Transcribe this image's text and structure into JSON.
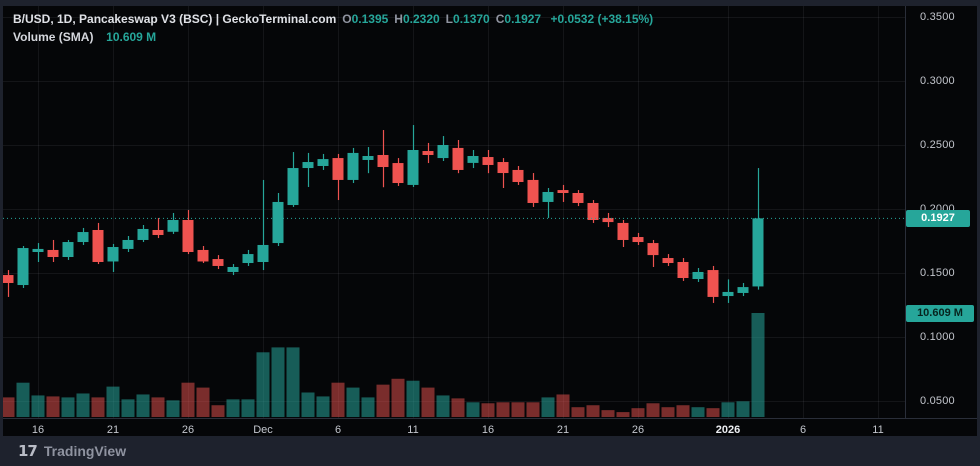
{
  "header": {
    "symbol_line": "B/USD, 1D, Pancakeswap V3 (BSC) | GeckoTerminal.com",
    "ohlc": [
      {
        "label": "O",
        "value": "0.1395"
      },
      {
        "label": "H",
        "value": "0.2320"
      },
      {
        "label": "L",
        "value": "0.1370"
      },
      {
        "label": "C",
        "value": "0.1927"
      }
    ],
    "change": "+0.0532 (+38.15%)",
    "volume_label": "Volume (SMA)",
    "volume_value": "10.609 M"
  },
  "price_axis": {
    "ticks": [
      "0.3500",
      "0.3000",
      "0.2500",
      "0.2000",
      "0.1500",
      "0.1000",
      "0.0500"
    ],
    "last_price_badge": "0.1927",
    "last_volume_badge": "10.609 M"
  },
  "time_axis": {
    "ticks": [
      {
        "label": "16",
        "i": 2,
        "major": false
      },
      {
        "label": "21",
        "i": 7,
        "major": false
      },
      {
        "label": "26",
        "i": 12,
        "major": false
      },
      {
        "label": "Dec",
        "i": 17,
        "major": false
      },
      {
        "label": "6",
        "i": 22,
        "major": false
      },
      {
        "label": "11",
        "i": 27,
        "major": false
      },
      {
        "label": "16",
        "i": 32,
        "major": false
      },
      {
        "label": "21",
        "i": 37,
        "major": false
      },
      {
        "label": "26",
        "i": 42,
        "major": false
      },
      {
        "label": "2026",
        "i": 48,
        "major": true
      },
      {
        "label": "6",
        "i": 53,
        "major": false
      },
      {
        "label": "11",
        "i": 58,
        "major": false
      }
    ]
  },
  "footer": {
    "brand": "TradingView",
    "glyph": "17"
  },
  "colors": {
    "up": "#26a69a",
    "down": "#ef5350",
    "vol_up": "rgba(38,166,154,0.55)",
    "vol_down": "rgba(239,83,80,0.5)",
    "grid": "rgba(240,243,250,0.065)",
    "axis_line": "#2a2e39",
    "badge_bg": "#26a69a",
    "price_line": "#26a69a"
  },
  "chart_data": {
    "type": "candlestick",
    "symbol": "B/USD",
    "interval": "1D",
    "exchange": "Pancakeswap V3 (BSC)",
    "source": "GeckoTerminal.com",
    "legend_last": {
      "open": 0.1395,
      "high": 0.232,
      "low": 0.137,
      "close": 0.1927,
      "change": 0.0532,
      "change_pct": 38.15,
      "volume_sma_m": 10.609
    },
    "price_gridlines": [
      0.35,
      0.3,
      0.25,
      0.2,
      0.15,
      0.1,
      0.05
    ],
    "visible_price_range": [
      0.037,
      0.363
    ],
    "last_price": 0.1927,
    "last_volume_m": 10.609,
    "volume_unit": "M",
    "columns": [
      "open",
      "high",
      "low",
      "close",
      "volume_m"
    ],
    "candles": [
      [
        0.1484,
        0.1523,
        0.1313,
        0.1422,
        2.0
      ],
      [
        0.1406,
        0.1711,
        0.1383,
        0.1695,
        3.5
      ],
      [
        0.1664,
        0.1734,
        0.1586,
        0.1688,
        2.2
      ],
      [
        0.168,
        0.1758,
        0.1586,
        0.1625,
        2.1
      ],
      [
        0.1625,
        0.1758,
        0.1602,
        0.1742,
        2.0
      ],
      [
        0.1742,
        0.1852,
        0.1719,
        0.182,
        2.4
      ],
      [
        0.1836,
        0.1891,
        0.157,
        0.1586,
        2.0
      ],
      [
        0.159,
        0.1727,
        0.1508,
        0.1703,
        3.1
      ],
      [
        0.1688,
        0.1789,
        0.1664,
        0.1758,
        1.8
      ],
      [
        0.1758,
        0.1875,
        0.1742,
        0.1844,
        2.3
      ],
      [
        0.1836,
        0.193,
        0.1773,
        0.1797,
        2.0
      ],
      [
        0.1822,
        0.1969,
        0.1805,
        0.1914,
        1.7
      ],
      [
        0.1914,
        0.1992,
        0.1648,
        0.1664,
        3.5
      ],
      [
        0.168,
        0.1711,
        0.1578,
        0.159,
        3.0
      ],
      [
        0.1609,
        0.164,
        0.1531,
        0.1555,
        1.2
      ],
      [
        0.1508,
        0.157,
        0.1484,
        0.1547,
        1.8
      ],
      [
        0.1578,
        0.168,
        0.1555,
        0.1648,
        1.8
      ],
      [
        0.1586,
        0.2227,
        0.1523,
        0.1719,
        6.6
      ],
      [
        0.1734,
        0.2125,
        0.1711,
        0.2055,
        7.1
      ],
      [
        0.2031,
        0.2445,
        0.2016,
        0.232,
        7.1
      ],
      [
        0.232,
        0.2438,
        0.2172,
        0.2367,
        2.5
      ],
      [
        0.2336,
        0.243,
        0.2305,
        0.239,
        2.1
      ],
      [
        0.2398,
        0.243,
        0.207,
        0.2227,
        3.5
      ],
      [
        0.2227,
        0.2477,
        0.2203,
        0.2438,
        3.0
      ],
      [
        0.2383,
        0.2484,
        0.228,
        0.2414,
        2.0
      ],
      [
        0.2422,
        0.2617,
        0.217,
        0.2328,
        3.3
      ],
      [
        0.2359,
        0.2398,
        0.218,
        0.2203,
        3.9
      ],
      [
        0.2188,
        0.2656,
        0.2172,
        0.2461,
        3.7
      ],
      [
        0.2453,
        0.2516,
        0.2359,
        0.2422,
        3.0
      ],
      [
        0.2398,
        0.257,
        0.2375,
        0.25,
        2.2
      ],
      [
        0.2477,
        0.2539,
        0.228,
        0.2305,
        1.9
      ],
      [
        0.236,
        0.2461,
        0.232,
        0.2414,
        1.5
      ],
      [
        0.2406,
        0.2461,
        0.228,
        0.2344,
        1.4
      ],
      [
        0.2367,
        0.2398,
        0.2164,
        0.2281,
        1.5
      ],
      [
        0.2305,
        0.2336,
        0.2188,
        0.2211,
        1.5
      ],
      [
        0.2227,
        0.2281,
        0.2016,
        0.2047,
        1.5
      ],
      [
        0.2055,
        0.2164,
        0.193,
        0.2133,
        2.0
      ],
      [
        0.2148,
        0.2188,
        0.2055,
        0.2125,
        2.3
      ],
      [
        0.2125,
        0.2148,
        0.2023,
        0.2047,
        1.0
      ],
      [
        0.2047,
        0.207,
        0.1891,
        0.1914,
        1.2
      ],
      [
        0.193,
        0.1969,
        0.1859,
        0.1898,
        0.7
      ],
      [
        0.1891,
        0.1914,
        0.1703,
        0.1758,
        0.5
      ],
      [
        0.1781,
        0.1813,
        0.1719,
        0.1742,
        0.9
      ],
      [
        0.1734,
        0.1758,
        0.1547,
        0.164,
        1.4
      ],
      [
        0.1617,
        0.1648,
        0.1555,
        0.1578,
        1.0
      ],
      [
        0.1586,
        0.1617,
        0.1438,
        0.1461,
        1.2
      ],
      [
        0.1453,
        0.1539,
        0.143,
        0.1508,
        1.0
      ],
      [
        0.1523,
        0.1555,
        0.1266,
        0.1313,
        0.9
      ],
      [
        0.132,
        0.145,
        0.1266,
        0.1352,
        1.5
      ],
      [
        0.1344,
        0.1422,
        0.132,
        0.139,
        1.6
      ],
      [
        0.1395,
        0.232,
        0.137,
        0.1927,
        10.609
      ]
    ]
  }
}
